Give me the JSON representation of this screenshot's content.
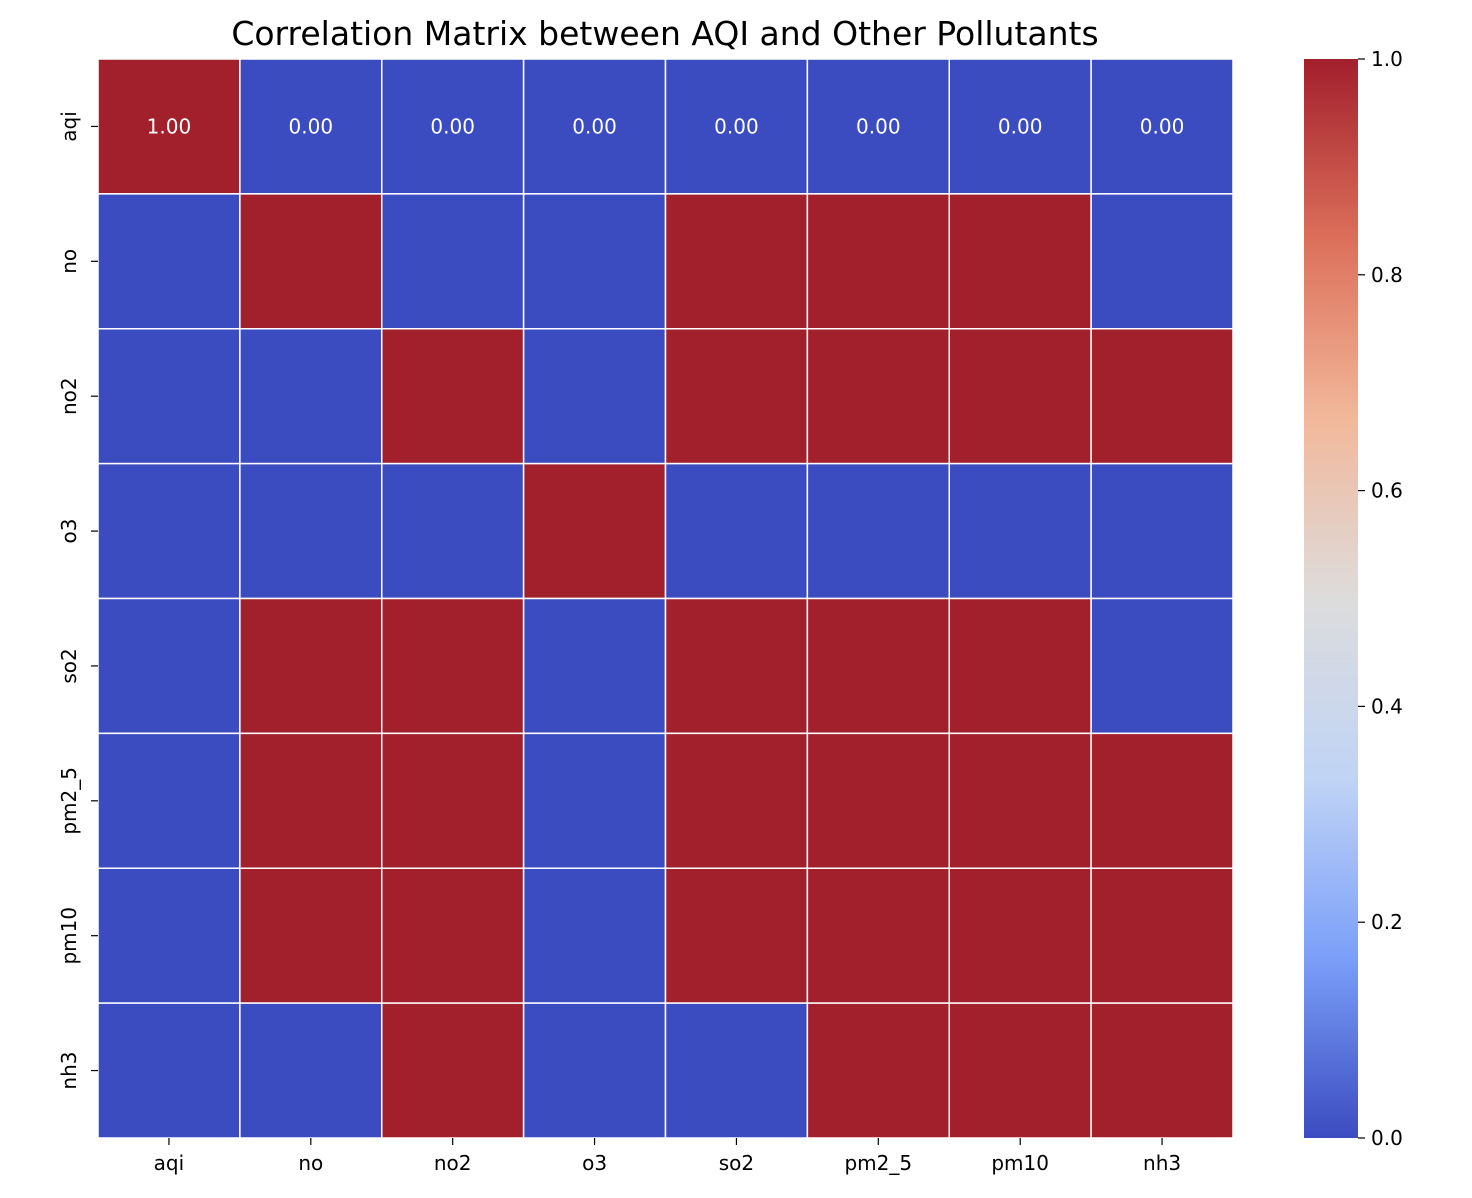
{
  "chart_data": {
    "type": "heatmap",
    "title": "Correlation Matrix between AQI and Other Pollutants",
    "xlabel": "",
    "ylabel": "",
    "x_categories": [
      "aqi",
      "no",
      "no2",
      "o3",
      "so2",
      "pm2_5",
      "pm10",
      "nh3"
    ],
    "y_categories": [
      "aqi",
      "no",
      "no2",
      "o3",
      "so2",
      "pm2_5",
      "pm10",
      "nh3"
    ],
    "values": [
      [
        1,
        0,
        0,
        0,
        0,
        0,
        0,
        0
      ],
      [
        0,
        1,
        0,
        0,
        1,
        1,
        1,
        0
      ],
      [
        0,
        0,
        1,
        0,
        1,
        1,
        1,
        1
      ],
      [
        0,
        0,
        0,
        1,
        0,
        0,
        0,
        0
      ],
      [
        0,
        1,
        1,
        0,
        1,
        1,
        1,
        0
      ],
      [
        0,
        1,
        1,
        0,
        1,
        1,
        1,
        1
      ],
      [
        0,
        1,
        1,
        0,
        1,
        1,
        1,
        1
      ],
      [
        0,
        0,
        1,
        0,
        0,
        1,
        1,
        1
      ]
    ],
    "annotations": [
      {
        "row": 0,
        "col": 0,
        "text": "1.00"
      },
      {
        "row": 0,
        "col": 1,
        "text": "0.00"
      },
      {
        "row": 0,
        "col": 2,
        "text": "0.00"
      },
      {
        "row": 0,
        "col": 3,
        "text": "0.00"
      },
      {
        "row": 0,
        "col": 4,
        "text": "0.00"
      },
      {
        "row": 0,
        "col": 5,
        "text": "0.00"
      },
      {
        "row": 0,
        "col": 6,
        "text": "0.00"
      },
      {
        "row": 0,
        "col": 7,
        "text": "0.00"
      }
    ],
    "colormap": "coolwarm",
    "color_low": "#3b4cc0",
    "color_high": "#a21f2c",
    "colorbar": {
      "range": [
        0.0,
        1.0
      ],
      "ticks": [
        "0.0",
        "0.2",
        "0.4",
        "0.6",
        "0.8",
        "1.0"
      ],
      "tick_values": [
        0.0,
        0.2,
        0.4,
        0.6,
        0.8,
        1.0
      ],
      "stops": [
        "#3b4cc0",
        "#7b9ff9",
        "#c0d4f5",
        "#dddcdc",
        "#f2b89a",
        "#dc6f5a",
        "#a21f2c"
      ]
    },
    "grid": false,
    "legend": "right colorbar"
  }
}
